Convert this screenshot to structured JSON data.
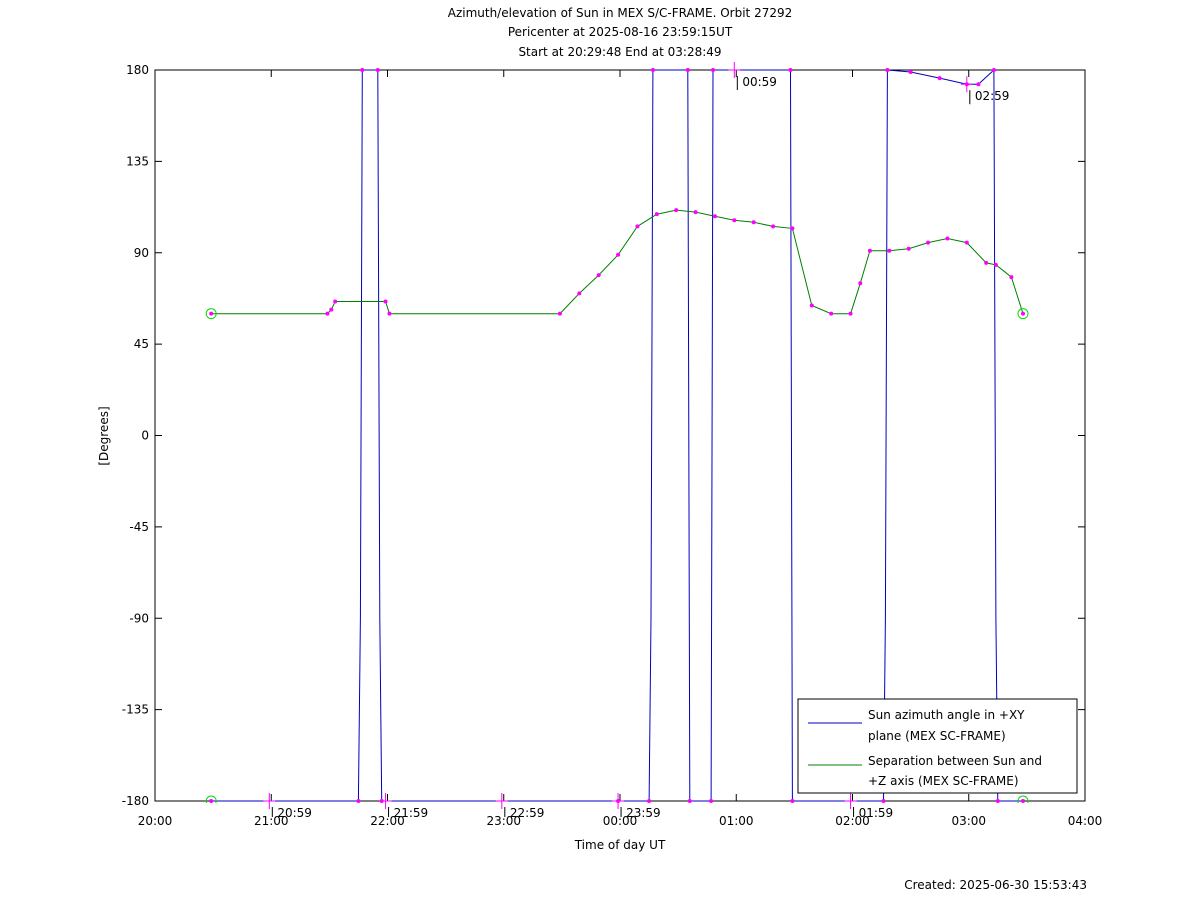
{
  "chart_data": {
    "type": "line",
    "title_lines": [
      "Azimuth/elevation of Sun in MEX S/C-FRAME.  Orbit 27292",
      "Pericenter at 2025-08-16 23:59:15UT",
      "Start at 20:29:48 End at 03:28:49"
    ],
    "xlabel": "Time of day UT",
    "ylabel": "[Degrees]",
    "xlim": [
      "20:00",
      "04:00"
    ],
    "ylim": [
      -180,
      180
    ],
    "x_ticks": [
      "20:00",
      "21:00",
      "22:00",
      "23:00",
      "00:00",
      "01:00",
      "02:00",
      "03:00",
      "04:00"
    ],
    "y_ticks": [
      "180",
      "135",
      "90",
      "45",
      "0",
      "-45",
      "-90",
      "-135",
      "-180"
    ],
    "legend_position": "bottom-right",
    "colors": {
      "azimuth": "#0000c0",
      "separation": "#008000",
      "marker": "#ff00ff",
      "endpoint": "#00dd00"
    },
    "series": [
      {
        "name": "Sun azimuth angle in +XY plane (MEX SC-FRAME)",
        "legend_lines": [
          "Sun azimuth angle in +XY",
          "plane (MEX SC-FRAME)"
        ],
        "points": [
          [
            "20:29",
            -180
          ],
          [
            "21:45",
            -180
          ],
          [
            "21:46",
            -90
          ],
          [
            "21:47",
            180
          ],
          [
            "21:55",
            180
          ],
          [
            "21:56",
            -90
          ],
          [
            "21:57",
            -180
          ],
          [
            "23:59",
            -180
          ],
          [
            "00:15",
            -180
          ],
          [
            "00:16",
            -90
          ],
          [
            "00:17",
            180
          ],
          [
            "00:35",
            180
          ],
          [
            "00:36",
            -180
          ],
          [
            "00:47",
            -180
          ],
          [
            "00:48",
            180
          ],
          [
            "01:28",
            180
          ],
          [
            "01:29",
            -180
          ],
          [
            "02:16",
            -180
          ],
          [
            "02:17",
            -90
          ],
          [
            "02:18",
            180
          ],
          [
            "02:30",
            179
          ],
          [
            "02:45",
            176
          ],
          [
            "02:59",
            173
          ],
          [
            "03:05",
            173
          ],
          [
            "03:13",
            180
          ],
          [
            "03:14",
            -90
          ],
          [
            "03:15",
            -180
          ],
          [
            "03:28",
            -180
          ]
        ]
      },
      {
        "name": "Separation between Sun and +Z axis (MEX SC-FRAME)",
        "legend_lines": [
          "Separation between Sun and",
          "+Z axis (MEX SC-FRAME)"
        ],
        "points": [
          [
            "20:29",
            60
          ],
          [
            "21:29",
            60
          ],
          [
            "21:31",
            62
          ],
          [
            "21:33",
            66
          ],
          [
            "21:59",
            66
          ],
          [
            "22:01",
            60
          ],
          [
            "23:29",
            60
          ],
          [
            "23:39",
            70
          ],
          [
            "23:49",
            79
          ],
          [
            "23:59",
            89
          ],
          [
            "00:09",
            103
          ],
          [
            "00:19",
            109
          ],
          [
            "00:29",
            111
          ],
          [
            "00:39",
            110
          ],
          [
            "00:49",
            108
          ],
          [
            "00:59",
            106
          ],
          [
            "01:09",
            105
          ],
          [
            "01:19",
            103
          ],
          [
            "01:29",
            102
          ],
          [
            "01:39",
            64
          ],
          [
            "01:49",
            60
          ],
          [
            "01:59",
            60
          ],
          [
            "02:04",
            75
          ],
          [
            "02:09",
            91
          ],
          [
            "02:19",
            91
          ],
          [
            "02:29",
            92
          ],
          [
            "02:39",
            95
          ],
          [
            "02:49",
            97
          ],
          [
            "02:59",
            95
          ],
          [
            "03:09",
            85
          ],
          [
            "03:14",
            84
          ],
          [
            "03:22",
            78
          ],
          [
            "03:28",
            60
          ]
        ]
      }
    ],
    "time_annotations": [
      {
        "label": "20:59",
        "time": "20:59",
        "y": -180
      },
      {
        "label": "21:59",
        "time": "21:59",
        "y": -180
      },
      {
        "label": "22:59",
        "time": "22:59",
        "y": -180
      },
      {
        "label": "23:59",
        "time": "23:59",
        "y": -180
      },
      {
        "label": "00:59",
        "time": "00:59",
        "y": 180
      },
      {
        "label": "01:59",
        "time": "01:59",
        "y": -180
      },
      {
        "label": "02:59",
        "time": "02:59",
        "y": 173
      }
    ],
    "created_text": "Created: 2025-06-30 15:53:43"
  }
}
